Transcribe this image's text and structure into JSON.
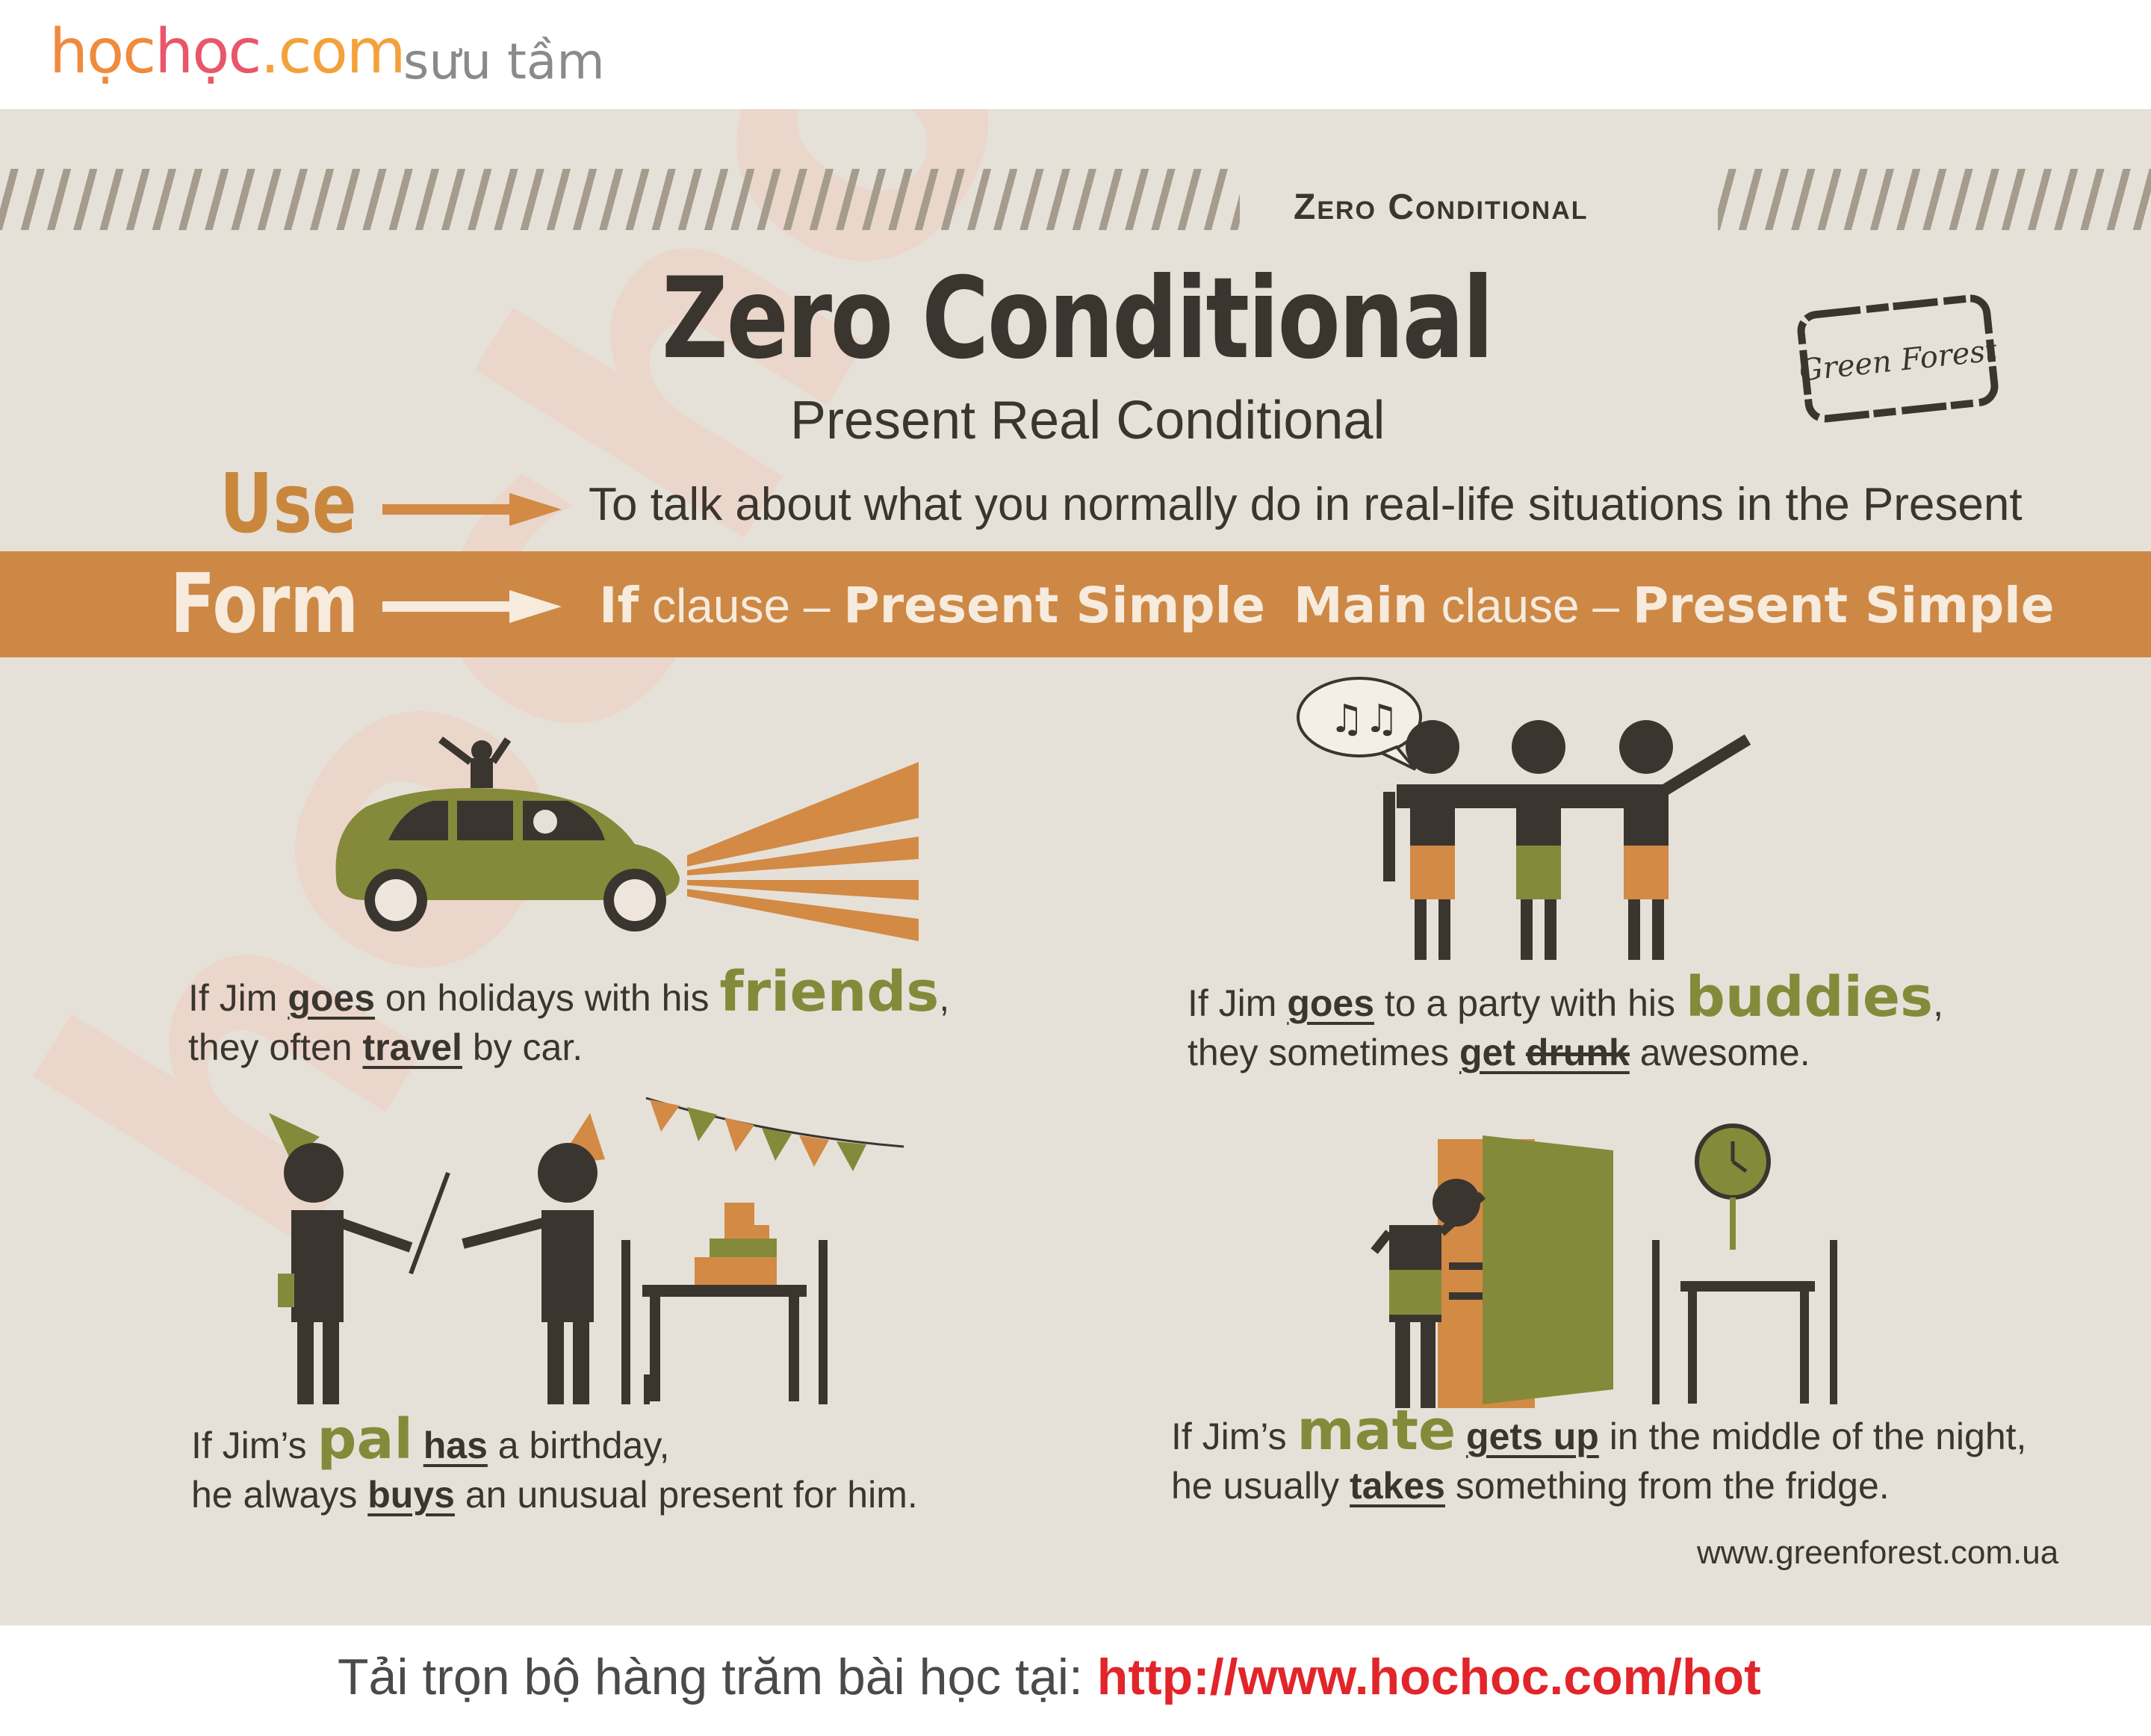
{
  "header": {
    "brand_hoc1": "học",
    "brand_hoc2": "học",
    "brand_com": ".com",
    "tagline": "sưu tầm"
  },
  "series_label": "Zero Conditional",
  "title": "Zero Conditional",
  "subtitle": "Present Real Conditional",
  "use": {
    "label": "Use",
    "text": "To talk about what you normally do in real-life situations in the Present"
  },
  "form": {
    "label": "Form",
    "if_keyword": "If",
    "if_clause": " clause – ",
    "if_tense": "Present Simple",
    "main_keyword": "Main",
    "main_clause": " clause – ",
    "main_tense": "Present Simple"
  },
  "examples": {
    "ex1": {
      "t1": "If Jim ",
      "v1": "goes",
      "t2": " on holidays with his ",
      "big": "friends",
      "t3": ",",
      "t4": "they often ",
      "v2": "travel",
      "t5": " by car."
    },
    "ex2": {
      "t1": "If Jim ",
      "v1": "goes",
      "t2": " to a party with his ",
      "big": "buddies",
      "t3": ",",
      "t4": "they sometimes ",
      "v2a": "get ",
      "v2b": "drunk",
      "t5": " awesome."
    },
    "ex3": {
      "t1": "If Jim’s ",
      "big": "pal",
      "t2": " ",
      "v1": "has",
      "t3": " a birthday,",
      "t4": "he always ",
      "v2": "buys",
      "t5": " an unusual present for him."
    },
    "ex4": {
      "t1": "If Jim’s ",
      "big": "mate",
      "t2": " ",
      "v1": "gets up",
      "t3": " in the middle of the night,",
      "t4": "he usually ",
      "v2": "takes",
      "t5": " something from the fridge."
    }
  },
  "stamp_text": "Green Forest",
  "site_url": "www.greenforest.com.ua",
  "watermark": "hochoc.com",
  "footer": {
    "text": "Tải trọn bộ hàng trăm bài học tại: ",
    "link": "http://www.hochoc.com/hot"
  },
  "colors": {
    "panel": "#e6e1d8",
    "accent": "#cd8846",
    "olive": "#858a3a",
    "dark": "#3b3530",
    "link": "#e1252a"
  }
}
